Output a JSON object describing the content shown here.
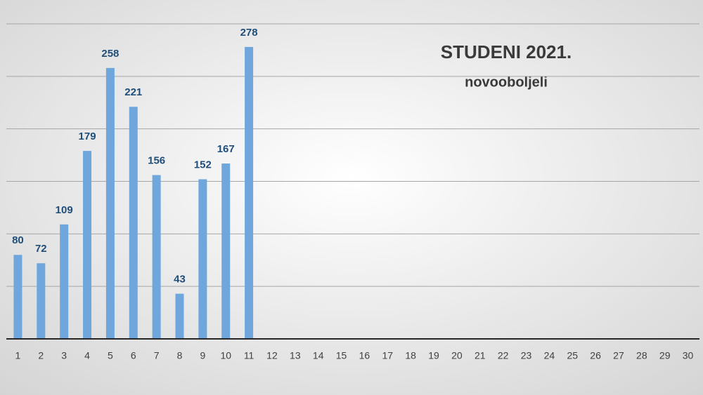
{
  "chart_data": {
    "type": "bar",
    "title": "STUDENI 2021.",
    "subtitle": "novooboljeli",
    "categories": [
      "1",
      "2",
      "3",
      "4",
      "5",
      "6",
      "7",
      "8",
      "9",
      "10",
      "11",
      "12",
      "13",
      "14",
      "15",
      "16",
      "17",
      "18",
      "19",
      "20",
      "21",
      "22",
      "23",
      "24",
      "25",
      "26",
      "27",
      "28",
      "29",
      "30"
    ],
    "values": [
      80,
      72,
      109,
      179,
      258,
      221,
      156,
      43,
      152,
      167,
      278,
      null,
      null,
      null,
      null,
      null,
      null,
      null,
      null,
      null,
      null,
      null,
      null,
      null,
      null,
      null,
      null,
      null,
      null,
      null
    ],
    "color": "#6fa6dc",
    "ylim": [
      0,
      300
    ],
    "yticks": [
      50,
      100,
      150,
      200,
      250,
      300
    ],
    "grid": true,
    "data_labels": true
  }
}
